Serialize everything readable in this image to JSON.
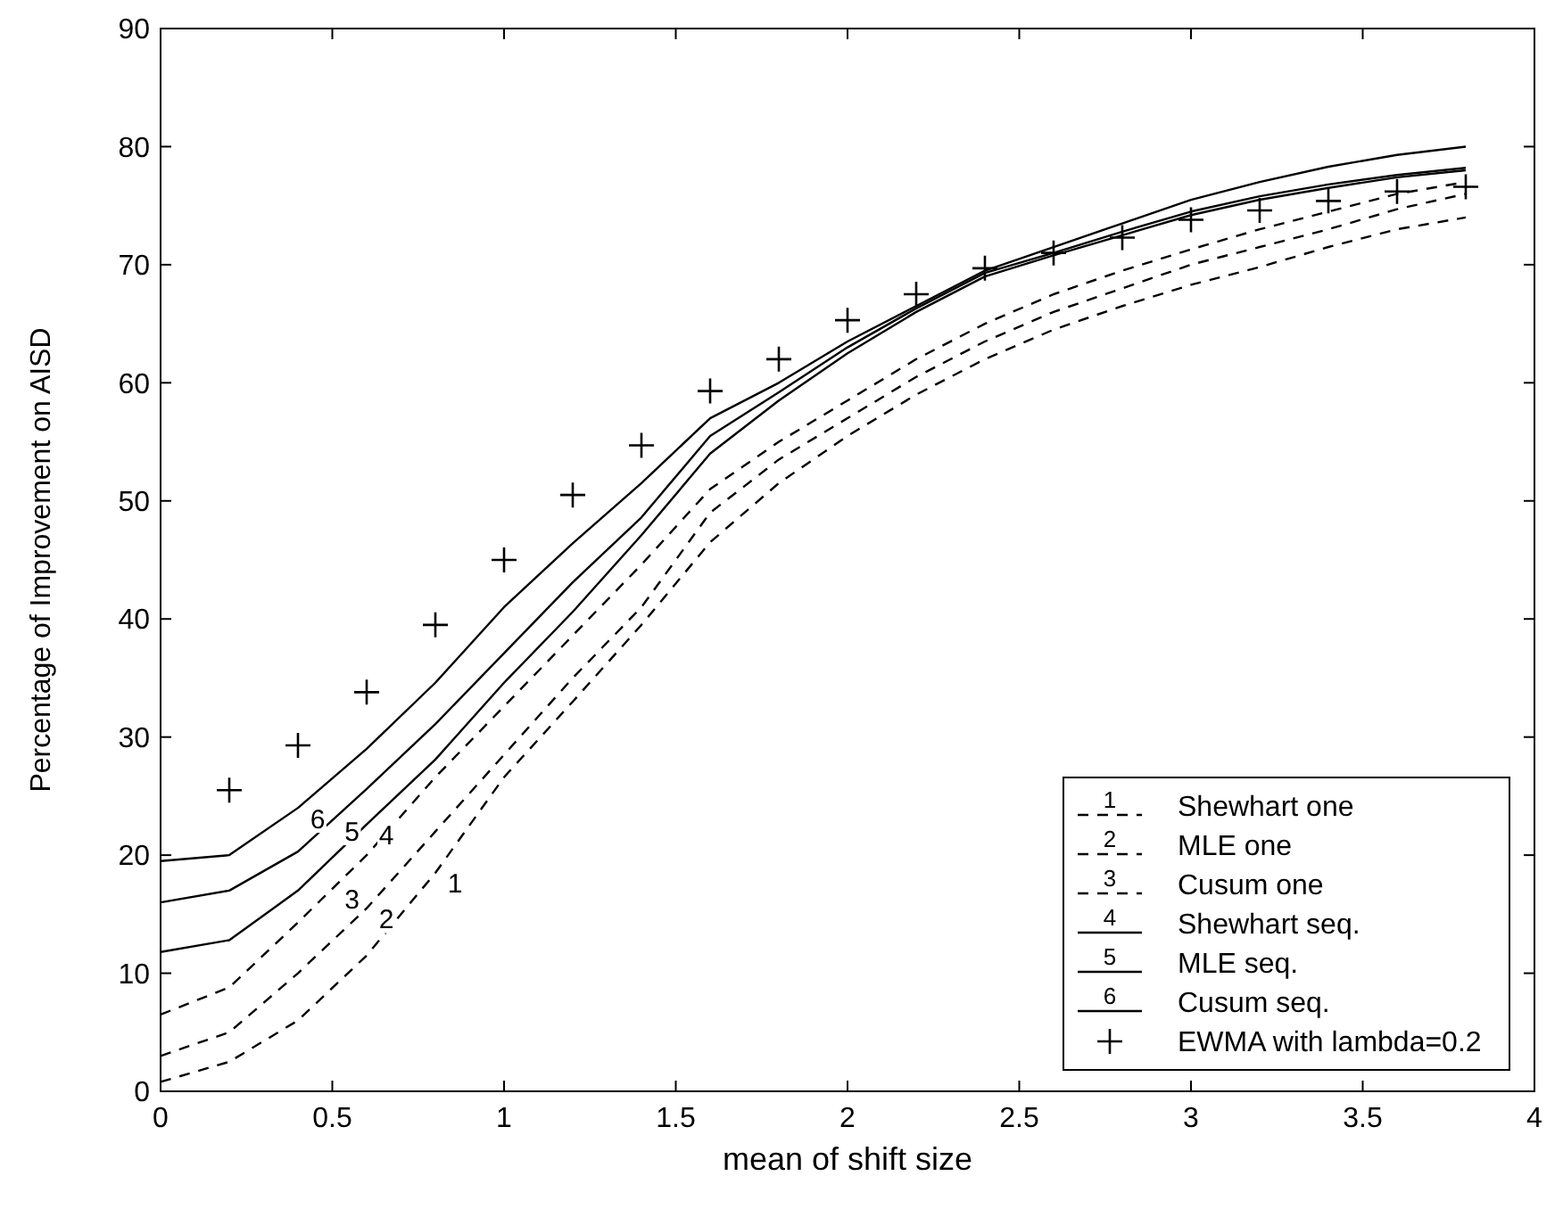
{
  "chart_data": {
    "type": "line",
    "xlabel": "mean of shift size",
    "ylabel": "Percentage of Improvement on AISD",
    "x": [
      0,
      0.2,
      0.4,
      0.6,
      0.8,
      1.0,
      1.2,
      1.4,
      1.6,
      1.8,
      2.0,
      2.2,
      2.4,
      2.6,
      2.8,
      3.0,
      3.2,
      3.4,
      3.6,
      3.8
    ],
    "series": [
      {
        "name": "Shewhart one",
        "color": "#000000",
        "line_style": "dashed",
        "values": [
          0.8,
          2.5,
          6,
          11.5,
          18.5,
          26.6,
          33,
          39.5,
          46.5,
          51.5,
          55.5,
          59,
          62,
          64.5,
          66.5,
          68.3,
          69.8,
          71.5,
          73,
          74
        ]
      },
      {
        "name": "MLE one",
        "color": "#000000",
        "line_style": "dashed",
        "values": [
          3,
          5,
          10,
          15.5,
          22,
          28.5,
          35,
          41,
          49,
          53.5,
          57,
          60.5,
          63.5,
          66,
          68,
          70,
          71.5,
          73,
          74.7,
          76
        ]
      },
      {
        "name": "Cusum one",
        "color": "#000000",
        "line_style": "dashed",
        "values": [
          6.5,
          8.8,
          14.3,
          20,
          26.6,
          32.6,
          38.6,
          44.6,
          51,
          55,
          58.5,
          62,
          65,
          67.5,
          69.5,
          71.3,
          73,
          74.5,
          76,
          77
        ]
      },
      {
        "name": "Shewhart seq.",
        "color": "#000000",
        "line_style": "solid",
        "values": [
          11.8,
          12.8,
          17,
          22.6,
          28.1,
          34.6,
          40.6,
          47.1,
          54,
          58.5,
          62.5,
          66,
          69,
          70.8,
          72.5,
          74.2,
          75.5,
          76.5,
          77.4,
          78
        ]
      },
      {
        "name": "MLE seq.",
        "color": "#000000",
        "line_style": "solid",
        "values": [
          16,
          17,
          20.3,
          25.6,
          31.1,
          37.1,
          43.1,
          48.6,
          55.5,
          59.2,
          63,
          66.3,
          69.3,
          71,
          72.8,
          74.5,
          75.8,
          76.8,
          77.6,
          78.2
        ]
      },
      {
        "name": "Cusum seq.",
        "color": "#000000",
        "line_style": "solid",
        "values": [
          19.5,
          20,
          24,
          29,
          34.6,
          41,
          46.4,
          51.5,
          57,
          60,
          63.5,
          66.5,
          69.5,
          71.5,
          73.5,
          75.5,
          77,
          78.3,
          79.3,
          80
        ]
      },
      {
        "name": "EWMA with lambda=0.2",
        "type": "scatter",
        "marker": "cross",
        "color": "#000000",
        "x": [
          0.2,
          0.4,
          0.6,
          0.8,
          1.0,
          1.2,
          1.4,
          1.6,
          1.8,
          2.0,
          2.2,
          2.4,
          2.6,
          2.8,
          3.0,
          3.2,
          3.4,
          3.6,
          3.8
        ],
        "values": [
          25.5,
          29.3,
          33.8,
          39.5,
          45,
          50.5,
          54.7,
          59.3,
          62,
          65.3,
          67.5,
          69.7,
          71,
          72.3,
          73.8,
          74.6,
          75.4,
          76.2,
          76.6
        ]
      }
    ],
    "annotations": [
      {
        "text": "1",
        "x": 0.8,
        "y": 18.5
      },
      {
        "text": "2",
        "x": 0.6,
        "y": 15.5
      },
      {
        "text": "3",
        "x": 0.5,
        "y": 17.15
      },
      {
        "text": "4",
        "x": 0.6,
        "y": 22.6
      },
      {
        "text": "5",
        "x": 0.5,
        "y": 22.95
      },
      {
        "text": "6",
        "x": 0.4,
        "y": 24
      }
    ],
    "xlim": [
      0,
      4
    ],
    "xticks": [
      0,
      0.5,
      1,
      1.5,
      2,
      2.5,
      3,
      3.5,
      4
    ],
    "ylim": [
      0,
      90
    ],
    "yticks": [
      0,
      10,
      20,
      30,
      40,
      50,
      60,
      70,
      80,
      90
    ],
    "grid": false,
    "legend": "bottom right"
  }
}
